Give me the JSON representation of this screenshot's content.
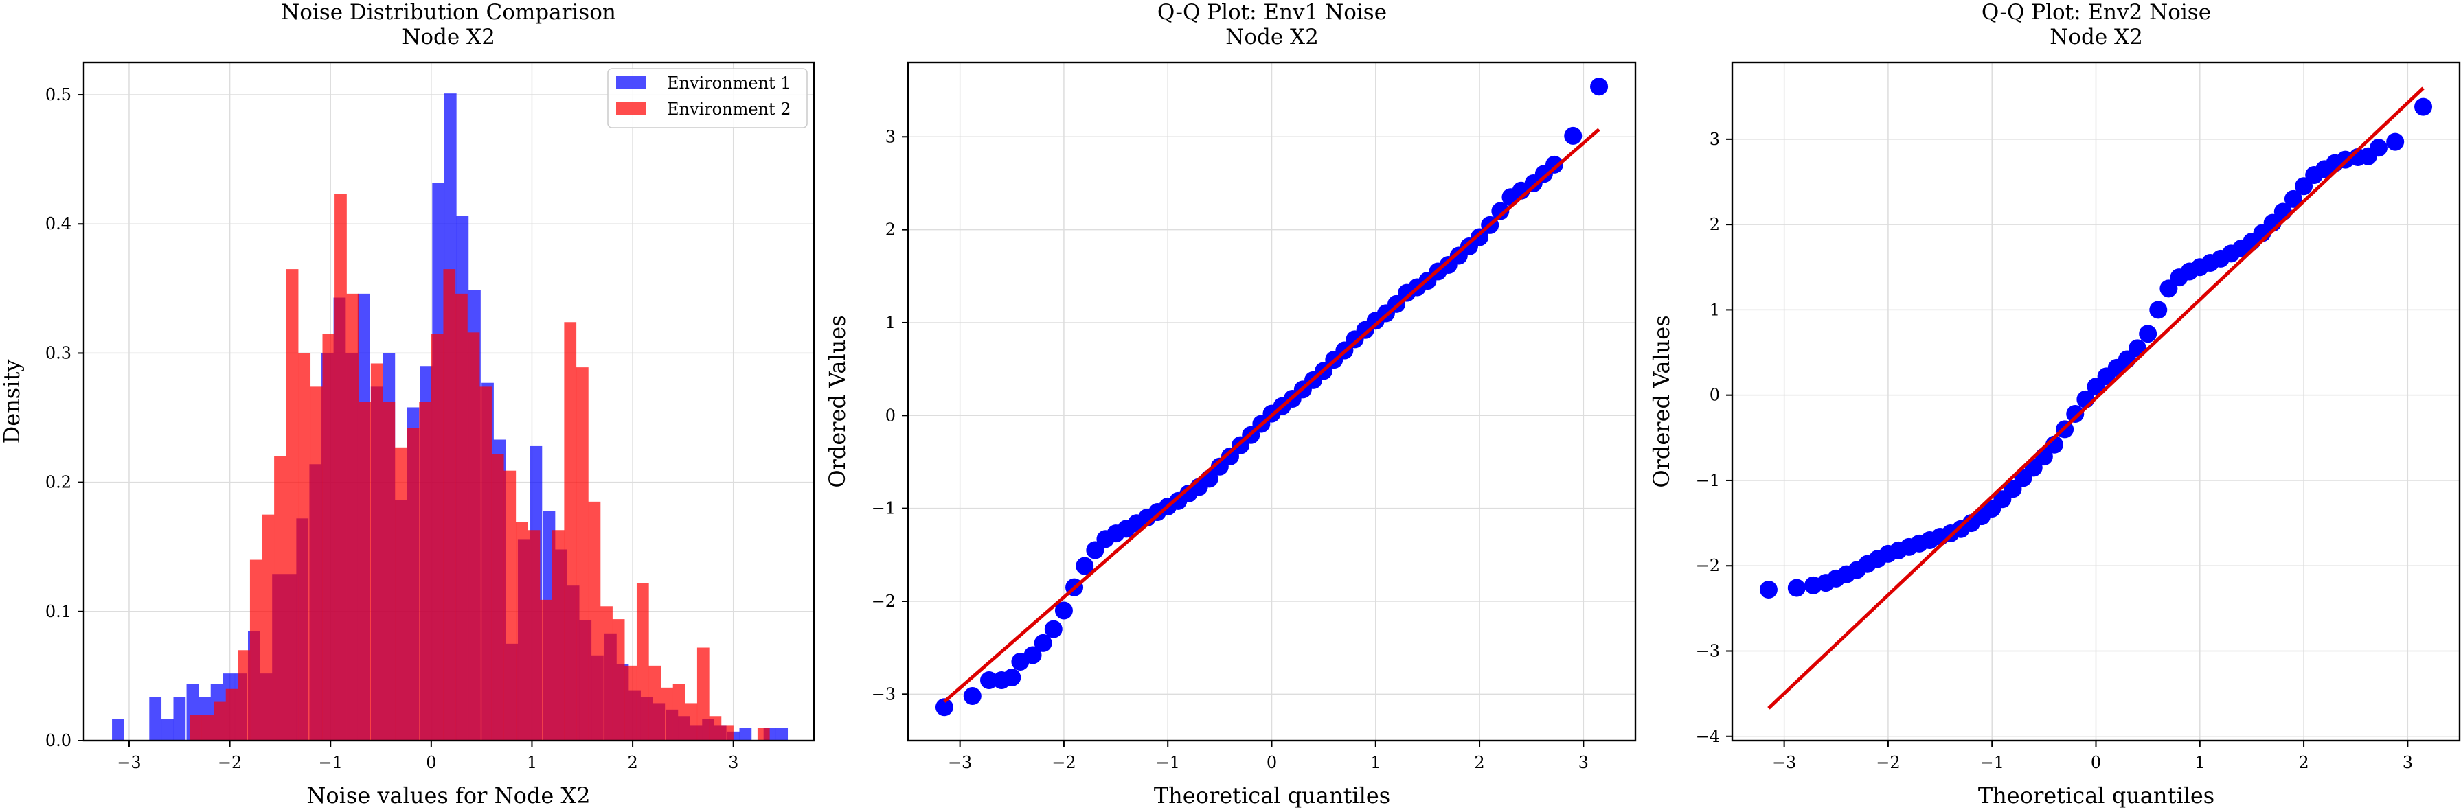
{
  "chart_data": [
    {
      "type": "bar",
      "title": "Noise Distribution Comparison",
      "subtitle": "Node X2",
      "xlabel": "Noise values for Node X2",
      "ylabel": "Density",
      "xlim": [
        -3.45,
        3.8
      ],
      "ylim": [
        0,
        0.525
      ],
      "xticks": [
        -3,
        -2,
        -1,
        0,
        1,
        2,
        3
      ],
      "yticks": [
        0.0,
        0.1,
        0.2,
        0.3,
        0.4,
        0.5
      ],
      "grid": true,
      "legend": "top-right",
      "bin_width": 0.121,
      "series": [
        {
          "name": "Environment 1",
          "color": "#0000ff",
          "opacity": 0.7,
          "bins": [
            [
              -3.17,
              0.017
            ],
            [
              -2.8,
              0.034
            ],
            [
              -2.68,
              0.017
            ],
            [
              -2.56,
              0.034
            ],
            [
              -2.43,
              0.044
            ],
            [
              -2.31,
              0.034
            ],
            [
              -2.19,
              0.044
            ],
            [
              -2.07,
              0.052
            ],
            [
              -1.95,
              0.052
            ],
            [
              -1.82,
              0.085
            ],
            [
              -1.7,
              0.052
            ],
            [
              -1.58,
              0.129
            ],
            [
              -1.46,
              0.129
            ],
            [
              -1.34,
              0.172
            ],
            [
              -1.21,
              0.214
            ],
            [
              -1.09,
              0.3
            ],
            [
              -0.97,
              0.343
            ],
            [
              -0.85,
              0.3
            ],
            [
              -0.73,
              0.346
            ],
            [
              -0.6,
              0.274
            ],
            [
              -0.48,
              0.3
            ],
            [
              -0.36,
              0.186
            ],
            [
              -0.24,
              0.258
            ],
            [
              -0.11,
              0.29
            ],
            [
              0.01,
              0.432
            ],
            [
              0.13,
              0.501
            ],
            [
              0.25,
              0.406
            ],
            [
              0.37,
              0.349
            ],
            [
              0.5,
              0.277
            ],
            [
              0.62,
              0.233
            ],
            [
              0.74,
              0.075
            ],
            [
              0.86,
              0.156
            ],
            [
              0.98,
              0.228
            ],
            [
              1.11,
              0.178
            ],
            [
              1.23,
              0.148
            ],
            [
              1.35,
              0.12
            ],
            [
              1.47,
              0.093
            ],
            [
              1.59,
              0.066
            ],
            [
              1.72,
              0.083
            ],
            [
              1.84,
              0.059
            ],
            [
              1.96,
              0.039
            ],
            [
              2.08,
              0.034
            ],
            [
              2.2,
              0.029
            ],
            [
              2.33,
              0.024
            ],
            [
              2.45,
              0.019
            ],
            [
              2.57,
              0.012
            ],
            [
              2.69,
              0.017
            ],
            [
              2.81,
              0.012
            ],
            [
              2.94,
              0.007
            ],
            [
              3.06,
              0.01
            ],
            [
              3.3,
              0.01
            ],
            [
              3.42,
              0.01
            ]
          ]
        },
        {
          "name": "Environment 2",
          "color": "#ff0000",
          "opacity": 0.7,
          "bins": [
            [
              -2.4,
              0.02
            ],
            [
              -2.28,
              0.02
            ],
            [
              -2.16,
              0.03
            ],
            [
              -2.04,
              0.04
            ],
            [
              -1.92,
              0.07
            ],
            [
              -1.8,
              0.14
            ],
            [
              -1.68,
              0.175
            ],
            [
              -1.56,
              0.22
            ],
            [
              -1.44,
              0.365
            ],
            [
              -1.32,
              0.3
            ],
            [
              -1.2,
              0.274
            ],
            [
              -1.08,
              0.315
            ],
            [
              -0.96,
              0.423
            ],
            [
              -0.84,
              0.346
            ],
            [
              -0.72,
              0.262
            ],
            [
              -0.6,
              0.292
            ],
            [
              -0.48,
              0.262
            ],
            [
              -0.36,
              0.227
            ],
            [
              -0.24,
              0.242
            ],
            [
              -0.12,
              0.262
            ],
            [
              0.0,
              0.315
            ],
            [
              0.12,
              0.365
            ],
            [
              0.24,
              0.346
            ],
            [
              0.36,
              0.316
            ],
            [
              0.48,
              0.274
            ],
            [
              0.6,
              0.222
            ],
            [
              0.72,
              0.209
            ],
            [
              0.84,
              0.169
            ],
            [
              0.96,
              0.163
            ],
            [
              1.08,
              0.109
            ],
            [
              1.2,
              0.163
            ],
            [
              1.32,
              0.324
            ],
            [
              1.44,
              0.289
            ],
            [
              1.56,
              0.185
            ],
            [
              1.68,
              0.104
            ],
            [
              1.8,
              0.094
            ],
            [
              1.92,
              0.058
            ],
            [
              2.04,
              0.122
            ],
            [
              2.16,
              0.058
            ],
            [
              2.28,
              0.041
            ],
            [
              2.4,
              0.044
            ],
            [
              2.52,
              0.029
            ],
            [
              2.64,
              0.072
            ],
            [
              2.76,
              0.019
            ],
            [
              2.88,
              0.012
            ],
            [
              3.24,
              0.01
            ]
          ]
        }
      ]
    },
    {
      "type": "scatter",
      "title": "Q-Q Plot: Env1 Noise",
      "subtitle": "Node X2",
      "xlabel": "Theoretical quantiles",
      "ylabel": "Ordered Values",
      "xlim": [
        -3.5,
        3.5
      ],
      "ylim": [
        -3.5,
        3.8
      ],
      "xticks": [
        -3,
        -2,
        -1,
        0,
        1,
        2,
        3
      ],
      "yticks": [
        -3,
        -2,
        -1,
        0,
        1,
        2,
        3
      ],
      "grid": true,
      "marker_color": "#0000ff",
      "fit_color": "#dd0000",
      "fit_line": {
        "x": [
          -3.15,
          3.15
        ],
        "y": [
          -3.08,
          3.08
        ]
      },
      "points": [
        [
          -3.15,
          -3.14
        ],
        [
          -2.88,
          -3.02
        ],
        [
          -2.72,
          -2.85
        ],
        [
          -2.6,
          -2.85
        ],
        [
          -2.5,
          -2.82
        ],
        [
          -2.42,
          -2.65
        ],
        [
          -2.3,
          -2.58
        ],
        [
          -2.2,
          -2.45
        ],
        [
          -2.1,
          -2.3
        ],
        [
          -2.0,
          -2.1
        ],
        [
          -1.9,
          -1.85
        ],
        [
          -1.8,
          -1.62
        ],
        [
          -1.7,
          -1.45
        ],
        [
          -1.6,
          -1.33
        ],
        [
          -1.5,
          -1.27
        ],
        [
          -1.4,
          -1.22
        ],
        [
          -1.3,
          -1.16
        ],
        [
          -1.2,
          -1.1
        ],
        [
          -1.1,
          -1.04
        ],
        [
          -1.0,
          -0.98
        ],
        [
          -0.9,
          -0.92
        ],
        [
          -0.8,
          -0.84
        ],
        [
          -0.7,
          -0.77
        ],
        [
          -0.6,
          -0.68
        ],
        [
          -0.5,
          -0.55
        ],
        [
          -0.4,
          -0.44
        ],
        [
          -0.3,
          -0.32
        ],
        [
          -0.2,
          -0.21
        ],
        [
          -0.1,
          -0.09
        ],
        [
          0.0,
          0.02
        ],
        [
          0.1,
          0.1
        ],
        [
          0.2,
          0.18
        ],
        [
          0.3,
          0.28
        ],
        [
          0.4,
          0.38
        ],
        [
          0.5,
          0.48
        ],
        [
          0.6,
          0.6
        ],
        [
          0.7,
          0.7
        ],
        [
          0.8,
          0.82
        ],
        [
          0.9,
          0.92
        ],
        [
          1.0,
          1.02
        ],
        [
          1.1,
          1.1
        ],
        [
          1.2,
          1.2
        ],
        [
          1.3,
          1.32
        ],
        [
          1.4,
          1.38
        ],
        [
          1.5,
          1.45
        ],
        [
          1.6,
          1.55
        ],
        [
          1.7,
          1.62
        ],
        [
          1.8,
          1.72
        ],
        [
          1.9,
          1.82
        ],
        [
          2.0,
          1.92
        ],
        [
          2.1,
          2.05
        ],
        [
          2.2,
          2.2
        ],
        [
          2.3,
          2.35
        ],
        [
          2.4,
          2.42
        ],
        [
          2.52,
          2.5
        ],
        [
          2.62,
          2.6
        ],
        [
          2.72,
          2.7
        ],
        [
          2.9,
          3.01
        ],
        [
          3.15,
          3.54
        ]
      ]
    },
    {
      "type": "scatter",
      "title": "Q-Q Plot: Env2 Noise",
      "subtitle": "Node X2",
      "xlabel": "Theoretical quantiles",
      "ylabel": "Ordered Values",
      "xlim": [
        -3.5,
        3.5
      ],
      "ylim": [
        -4.05,
        3.9
      ],
      "xticks": [
        -3,
        -2,
        -1,
        0,
        1,
        2,
        3
      ],
      "yticks": [
        -4,
        -3,
        -2,
        -1,
        0,
        1,
        2,
        3
      ],
      "grid": true,
      "marker_color": "#0000ff",
      "fit_color": "#dd0000",
      "fit_line": {
        "x": [
          -3.15,
          3.15
        ],
        "y": [
          -3.67,
          3.6
        ]
      },
      "points": [
        [
          -3.15,
          -2.28
        ],
        [
          -2.88,
          -2.26
        ],
        [
          -2.72,
          -2.23
        ],
        [
          -2.6,
          -2.2
        ],
        [
          -2.5,
          -2.15
        ],
        [
          -2.4,
          -2.1
        ],
        [
          -2.3,
          -2.05
        ],
        [
          -2.2,
          -1.98
        ],
        [
          -2.1,
          -1.92
        ],
        [
          -2.0,
          -1.86
        ],
        [
          -1.9,
          -1.82
        ],
        [
          -1.8,
          -1.78
        ],
        [
          -1.7,
          -1.74
        ],
        [
          -1.6,
          -1.7
        ],
        [
          -1.5,
          -1.66
        ],
        [
          -1.4,
          -1.62
        ],
        [
          -1.3,
          -1.57
        ],
        [
          -1.2,
          -1.5
        ],
        [
          -1.1,
          -1.42
        ],
        [
          -1.0,
          -1.33
        ],
        [
          -0.9,
          -1.22
        ],
        [
          -0.8,
          -1.1
        ],
        [
          -0.7,
          -0.97
        ],
        [
          -0.6,
          -0.85
        ],
        [
          -0.5,
          -0.72
        ],
        [
          -0.4,
          -0.58
        ],
        [
          -0.3,
          -0.4
        ],
        [
          -0.2,
          -0.22
        ],
        [
          -0.1,
          -0.05
        ],
        [
          0.0,
          0.1
        ],
        [
          0.1,
          0.22
        ],
        [
          0.2,
          0.32
        ],
        [
          0.3,
          0.42
        ],
        [
          0.4,
          0.55
        ],
        [
          0.5,
          0.72
        ],
        [
          0.6,
          1.0
        ],
        [
          0.7,
          1.25
        ],
        [
          0.8,
          1.38
        ],
        [
          0.9,
          1.45
        ],
        [
          1.0,
          1.5
        ],
        [
          1.1,
          1.55
        ],
        [
          1.2,
          1.6
        ],
        [
          1.3,
          1.66
        ],
        [
          1.4,
          1.72
        ],
        [
          1.5,
          1.8
        ],
        [
          1.6,
          1.9
        ],
        [
          1.7,
          2.02
        ],
        [
          1.8,
          2.15
        ],
        [
          1.9,
          2.3
        ],
        [
          2.0,
          2.45
        ],
        [
          2.1,
          2.58
        ],
        [
          2.2,
          2.65
        ],
        [
          2.3,
          2.72
        ],
        [
          2.4,
          2.76
        ],
        [
          2.52,
          2.79
        ],
        [
          2.62,
          2.8
        ],
        [
          2.72,
          2.9
        ],
        [
          2.88,
          2.97
        ],
        [
          3.15,
          3.38
        ]
      ]
    }
  ]
}
